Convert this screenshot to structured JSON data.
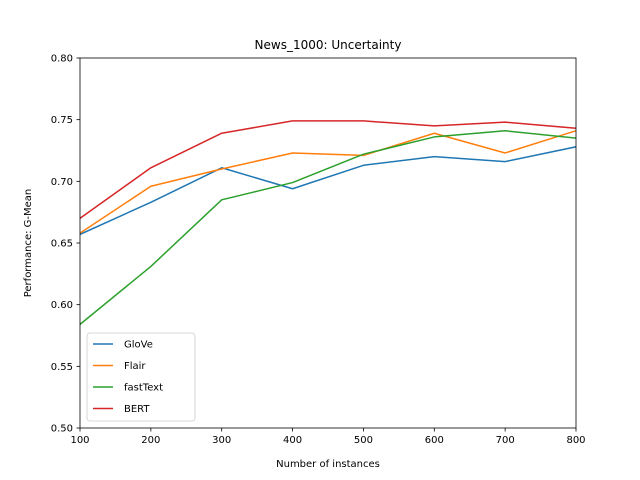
{
  "chart_data": {
    "type": "line",
    "title": "News_1000: Uncertainty",
    "xlabel": "Number of instances",
    "ylabel": "Performance: G-Mean",
    "x": [
      100,
      200,
      300,
      400,
      500,
      600,
      700,
      800
    ],
    "xlim": [
      100,
      800
    ],
    "ylim": [
      0.5,
      0.8
    ],
    "xticks": [
      100,
      200,
      300,
      400,
      500,
      600,
      700,
      800
    ],
    "xtick_labels": [
      "100",
      "200",
      "300",
      "400",
      "500",
      "600",
      "700",
      "800"
    ],
    "yticks": [
      0.5,
      0.55,
      0.6,
      0.65,
      0.7,
      0.75,
      0.8
    ],
    "ytick_labels": [
      "0.50",
      "0.55",
      "0.60",
      "0.65",
      "0.70",
      "0.75",
      "0.80"
    ],
    "grid": false,
    "legend_position": "lower-left",
    "series": [
      {
        "name": "GloVe",
        "color": "#1f77b4",
        "values": [
          0.657,
          0.683,
          0.711,
          0.694,
          0.713,
          0.72,
          0.716,
          0.728
        ]
      },
      {
        "name": "Flair",
        "color": "#ff7f0e",
        "values": [
          0.658,
          0.696,
          0.71,
          0.723,
          0.721,
          0.739,
          0.723,
          0.741
        ]
      },
      {
        "name": "fastText",
        "color": "#2ca02c",
        "values": [
          0.584,
          0.631,
          0.685,
          0.699,
          0.722,
          0.736,
          0.741,
          0.735
        ]
      },
      {
        "name": "BERT",
        "color": "#d62728",
        "values": [
          0.67,
          0.711,
          0.739,
          0.749,
          0.749,
          0.745,
          0.748,
          0.743
        ]
      }
    ]
  }
}
